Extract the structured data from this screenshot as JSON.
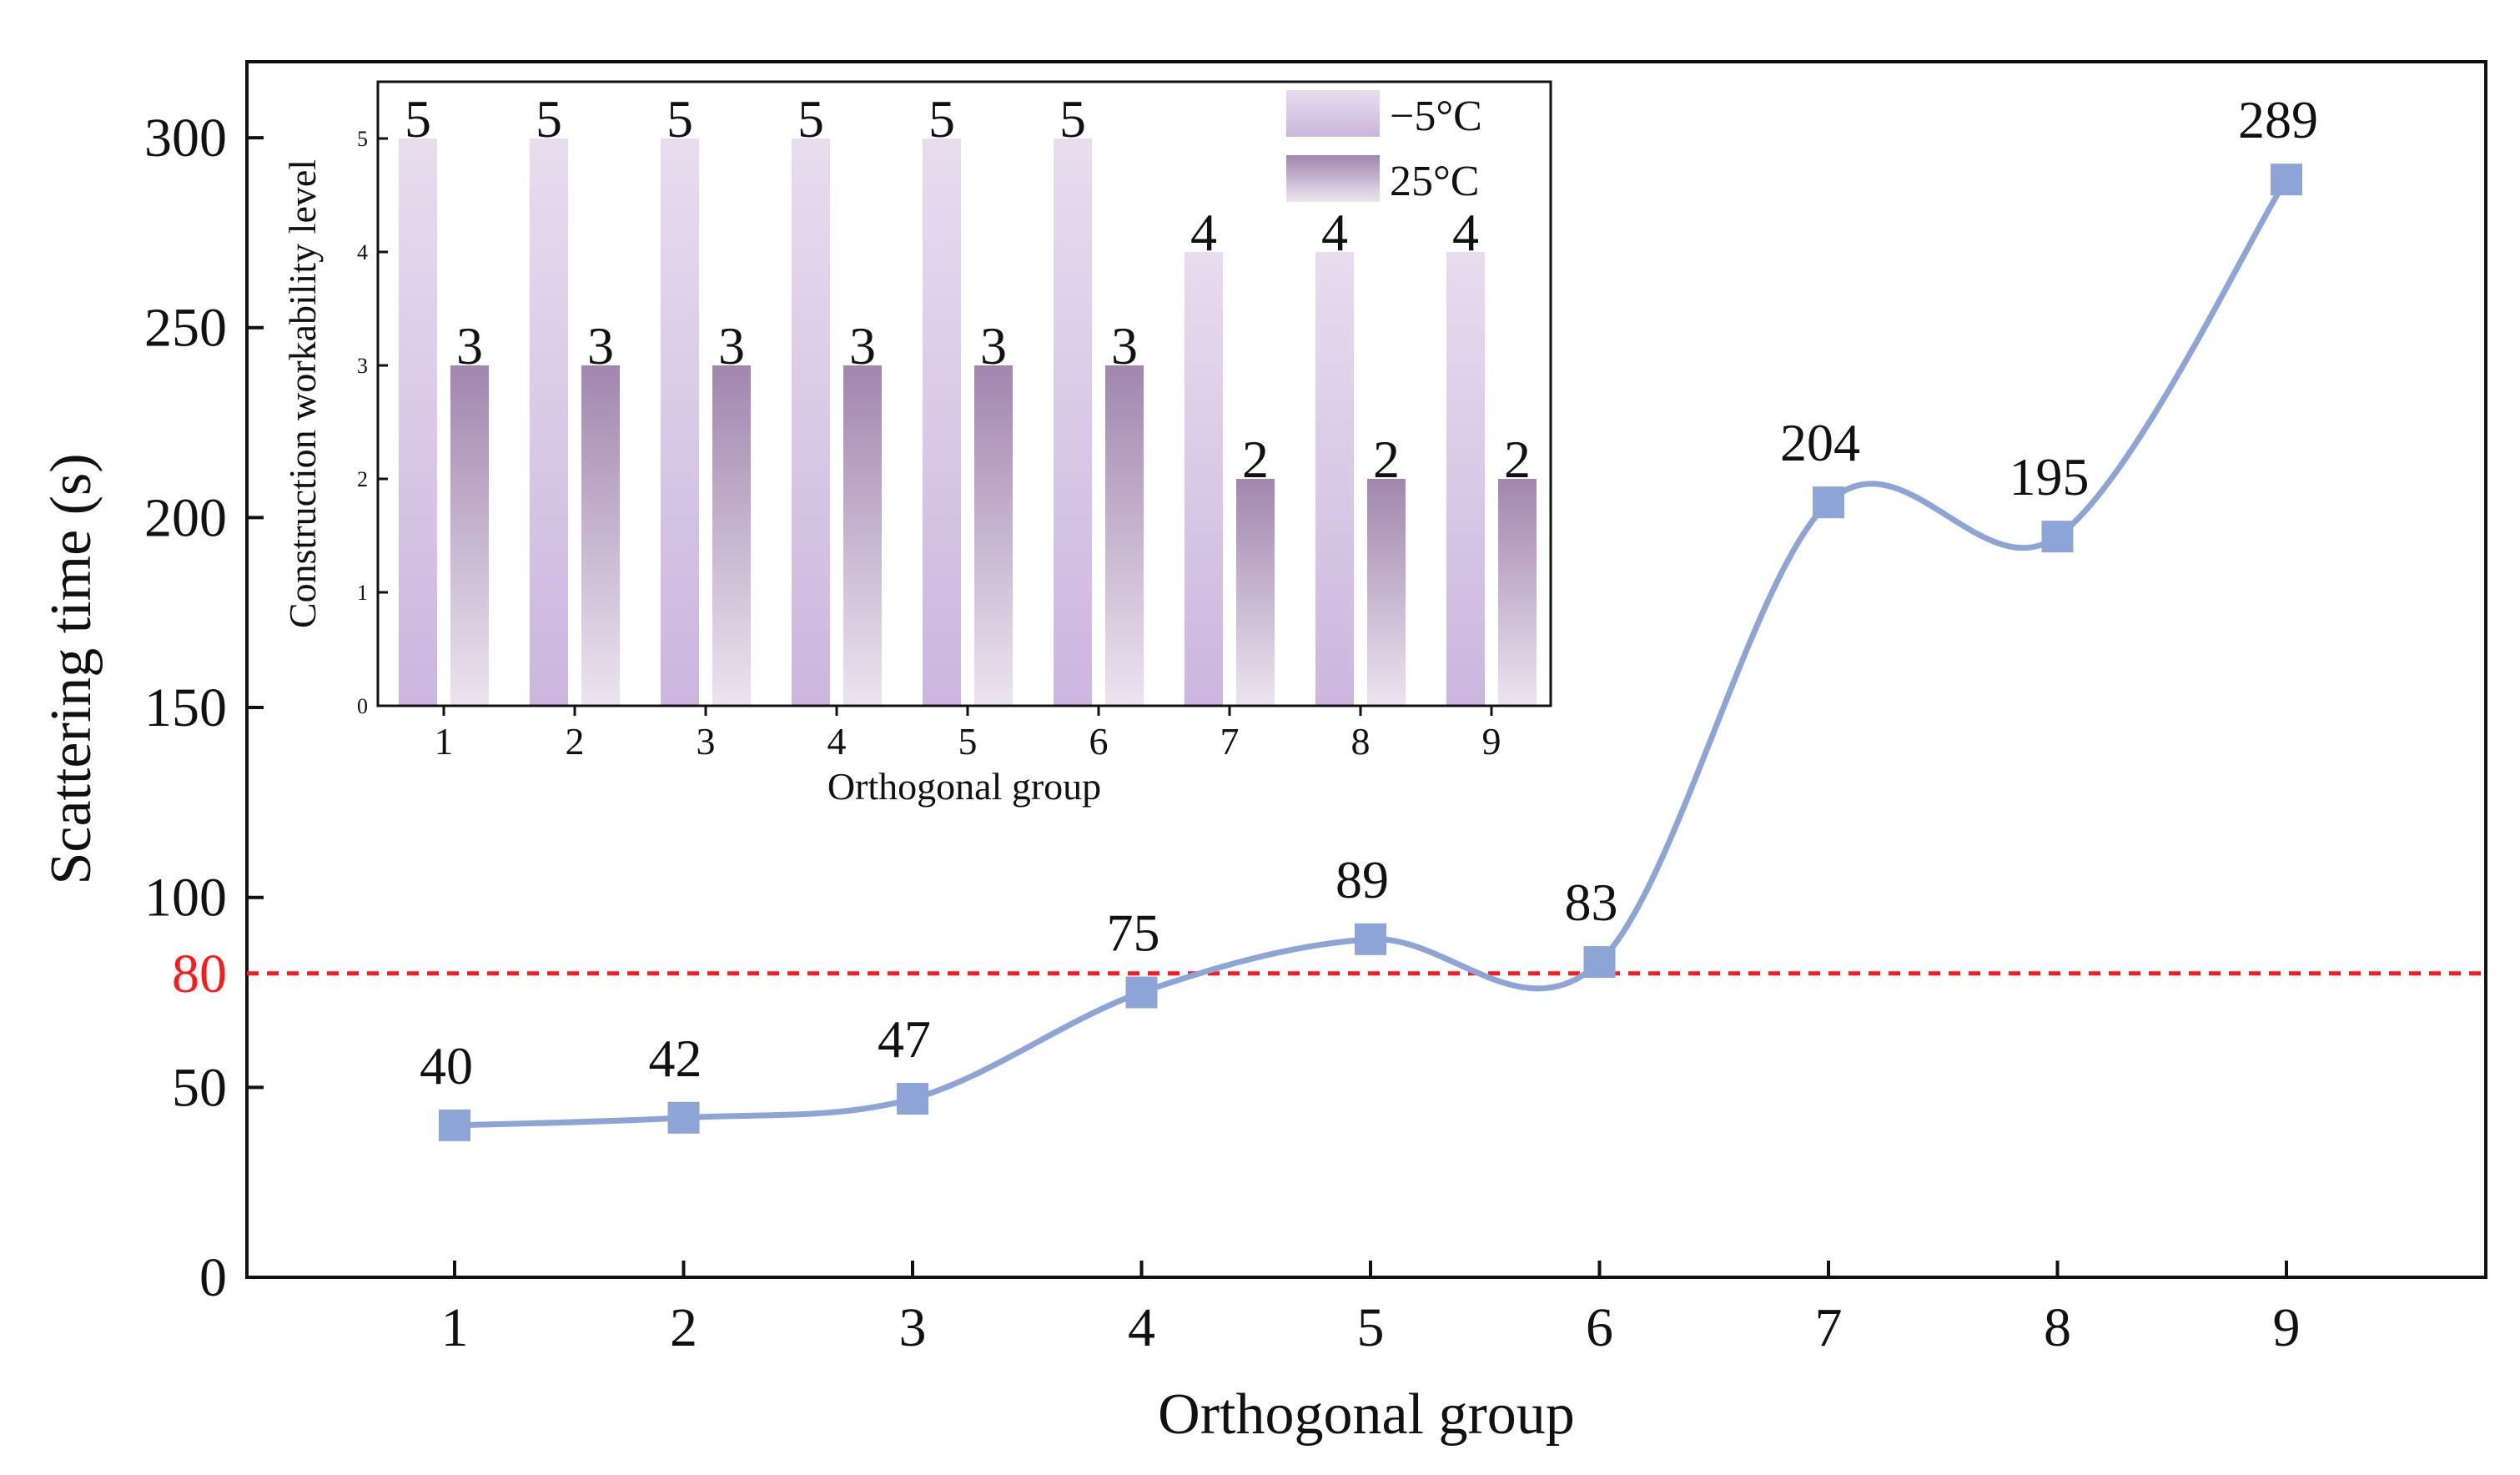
{
  "chart_data": [
    {
      "type": "line",
      "xlabel": "Orthogonal group",
      "ylabel": "Scattering time (s)",
      "categories": [
        "1",
        "2",
        "3",
        "4",
        "5",
        "6",
        "7",
        "8",
        "9"
      ],
      "values": [
        40,
        42,
        47,
        75,
        89,
        83,
        204,
        195,
        289
      ],
      "data_labels": [
        "40",
        "42",
        "47",
        "75",
        "89",
        "83",
        "204",
        "195",
        "289"
      ],
      "ylim": [
        0,
        320
      ],
      "yticks": [
        0,
        50,
        100,
        150,
        200,
        250,
        300
      ],
      "ytick_labels": [
        "0",
        "50",
        "100",
        "150",
        "200",
        "250",
        "300"
      ],
      "reference_line": {
        "value": 80,
        "label": "80",
        "color": "#ff1a1a",
        "style": "dashed"
      },
      "series_color": "#8da5d6",
      "marker": "square",
      "grid": false
    },
    {
      "type": "bar",
      "inset": true,
      "xlabel": "Orthogonal group",
      "ylabel": "Construction workability level",
      "categories": [
        "1",
        "2",
        "3",
        "4",
        "5",
        "6",
        "7",
        "8",
        "9"
      ],
      "series": [
        {
          "name": "−5°C",
          "values": [
            5,
            5,
            5,
            5,
            5,
            5,
            4,
            4,
            4
          ],
          "color_top": "#e8dcee",
          "color_bottom": "#cbb6de"
        },
        {
          "name": "25°C",
          "values": [
            3,
            3,
            3,
            3,
            3,
            3,
            2,
            2,
            2
          ],
          "color_top": "#a186ae",
          "color_bottom": "#ece4f0"
        }
      ],
      "ylim": [
        0,
        5.5
      ],
      "yticks": [
        0,
        1,
        2,
        3,
        4,
        5
      ],
      "ytick_labels": [
        "0",
        "1",
        "2",
        "3",
        "4",
        "5"
      ],
      "legend_position": "top-right",
      "grid": false
    }
  ]
}
